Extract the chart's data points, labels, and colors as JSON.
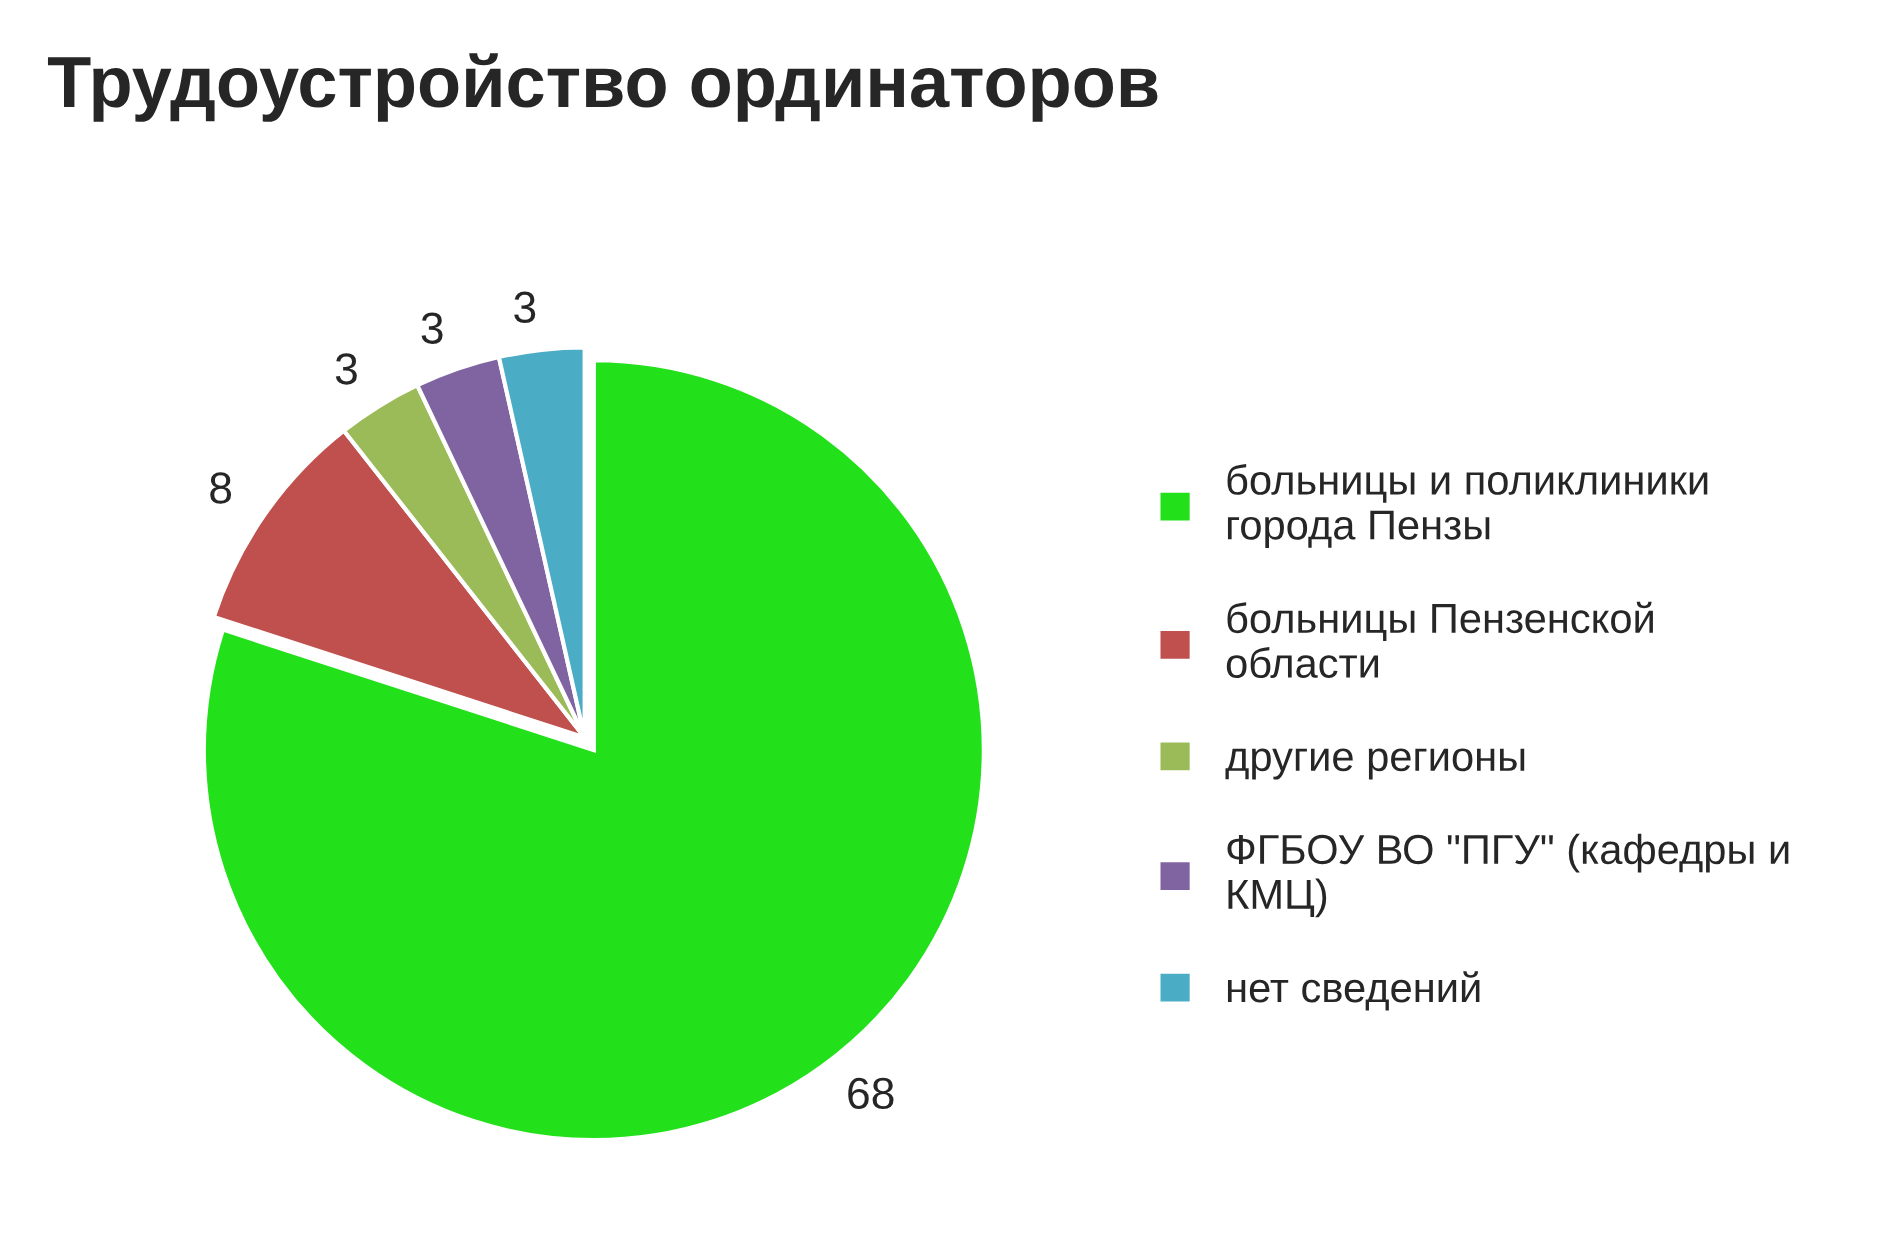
{
  "chart_data": {
    "type": "pie",
    "title": "Трудоустройство ординаторов",
    "categories": [
      "больницы и поликлиники города Пензы",
      "больницы Пензенской области",
      "другие регионы",
      "ФГБОУ ВО \"ПГУ\" (кафедры и КМЦ)",
      "нет сведений"
    ],
    "values": [
      68,
      8,
      3,
      3,
      3
    ],
    "colors": [
      "#22e01a",
      "#c0504d",
      "#9bbb59",
      "#8064a2",
      "#4bacc6"
    ],
    "data_labels": true,
    "legend": "right"
  }
}
